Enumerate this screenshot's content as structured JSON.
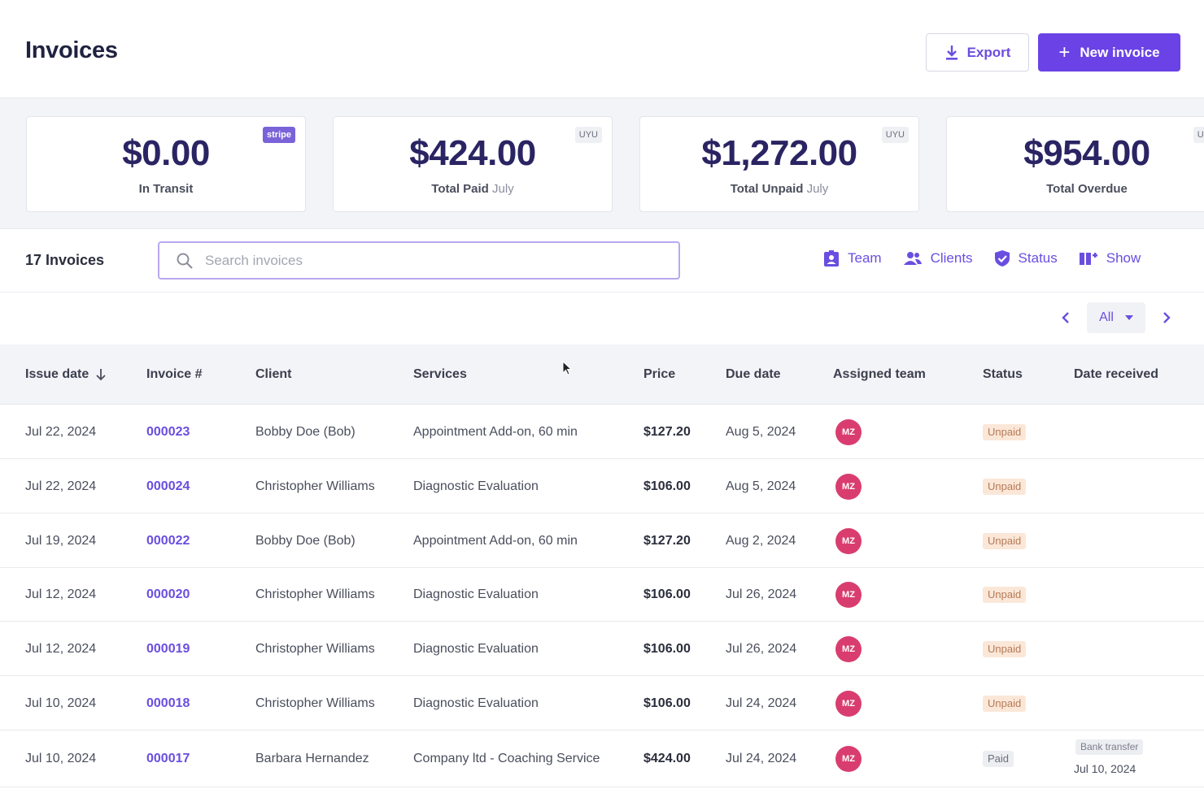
{
  "header": {
    "title": "Invoices",
    "export_label": "Export",
    "new_label": "New invoice"
  },
  "stats": [
    {
      "amount": "$0.00",
      "label": "In Transit",
      "sub": "",
      "tag": "stripe"
    },
    {
      "amount": "$424.00",
      "label": "Total Paid",
      "sub": "July",
      "tag": "UYU"
    },
    {
      "amount": "$1,272.00",
      "label": "Total Unpaid",
      "sub": "July",
      "tag": "UYU"
    },
    {
      "amount": "$954.00",
      "label": "Total Overdue",
      "sub": "",
      "tag": "UYU"
    }
  ],
  "toolbar": {
    "count": "17 Invoices",
    "search_placeholder": "Search invoices",
    "search_value": "",
    "filters": [
      "Team",
      "Clients",
      "Status",
      "Show"
    ]
  },
  "pager": {
    "selected": "All"
  },
  "table": {
    "columns": [
      "Issue date",
      "Invoice #",
      "Client",
      "Services",
      "Price",
      "Due date",
      "Assigned team",
      "Status",
      "Date received"
    ],
    "rows": [
      {
        "issue": "Jul 22, 2024",
        "invoice": "000023",
        "client": "Bobby Doe (Bob)",
        "services": "Appointment Add-on, 60 min",
        "price": "$127.20",
        "due": "Aug 5, 2024",
        "team": "MZ",
        "status": "Unpaid",
        "received_method": "",
        "received_date": ""
      },
      {
        "issue": "Jul 22, 2024",
        "invoice": "000024",
        "client": "Christopher Williams",
        "services": "Diagnostic Evaluation",
        "price": "$106.00",
        "due": "Aug 5, 2024",
        "team": "MZ",
        "status": "Unpaid",
        "received_method": "",
        "received_date": ""
      },
      {
        "issue": "Jul 19, 2024",
        "invoice": "000022",
        "client": "Bobby Doe (Bob)",
        "services": "Appointment Add-on, 60 min",
        "price": "$127.20",
        "due": "Aug 2, 2024",
        "team": "MZ",
        "status": "Unpaid",
        "received_method": "",
        "received_date": ""
      },
      {
        "issue": "Jul 12, 2024",
        "invoice": "000020",
        "client": "Christopher Williams",
        "services": "Diagnostic Evaluation",
        "price": "$106.00",
        "due": "Jul 26, 2024",
        "team": "MZ",
        "status": "Unpaid",
        "received_method": "",
        "received_date": ""
      },
      {
        "issue": "Jul 12, 2024",
        "invoice": "000019",
        "client": "Christopher Williams",
        "services": "Diagnostic Evaluation",
        "price": "$106.00",
        "due": "Jul 26, 2024",
        "team": "MZ",
        "status": "Unpaid",
        "received_method": "",
        "received_date": ""
      },
      {
        "issue": "Jul 10, 2024",
        "invoice": "000018",
        "client": "Christopher Williams",
        "services": "Diagnostic Evaluation",
        "price": "$106.00",
        "due": "Jul 24, 2024",
        "team": "MZ",
        "status": "Unpaid",
        "received_method": "",
        "received_date": ""
      },
      {
        "issue": "Jul 10, 2024",
        "invoice": "000017",
        "client": "Barbara Hernandez",
        "services": "Company ltd - Coaching Service",
        "price": "$424.00",
        "due": "Jul 24, 2024",
        "team": "MZ",
        "status": "Paid",
        "received_method": "Bank transfer",
        "received_date": "Jul 10, 2024"
      }
    ]
  },
  "colors": {
    "accent": "#6a42e6",
    "avatar": "#d93d6f",
    "unpaid_bg": "#fbe7d8",
    "paid_bg": "#eceef2"
  },
  "icons": {
    "export": "download-icon",
    "new": "plus-icon",
    "search": "search-icon",
    "team": "badge-icon",
    "clients": "users-icon",
    "status": "shield-check-icon",
    "show": "columns-icon",
    "sort": "arrow-down-icon"
  }
}
